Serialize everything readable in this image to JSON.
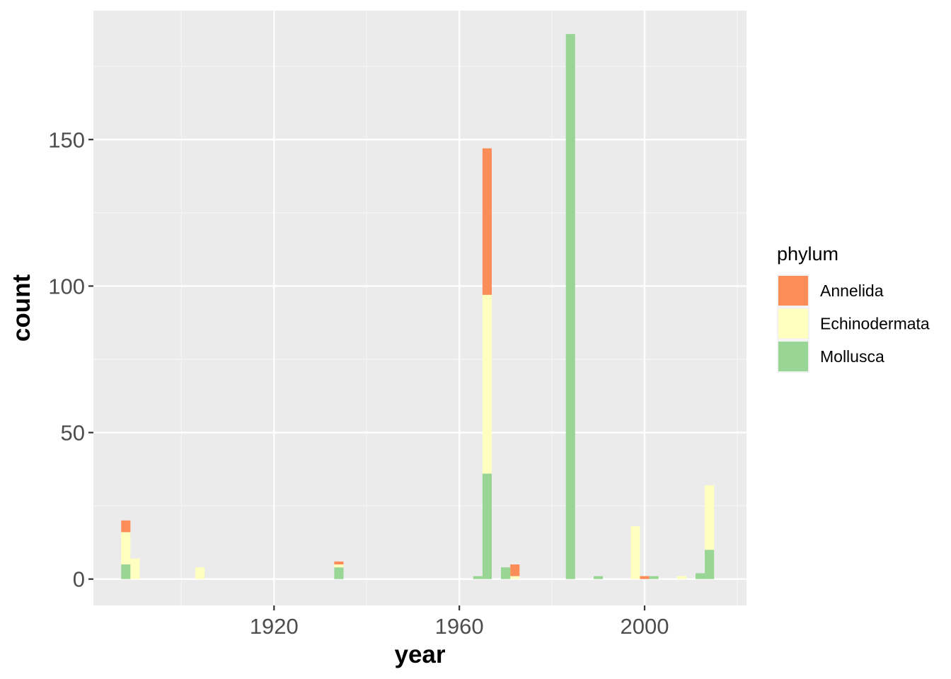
{
  "chart_data": {
    "type": "bar",
    "stacked": true,
    "bin_width": 2,
    "xlabel": "year",
    "ylabel": "count",
    "xlim": [
      1881,
      2022
    ],
    "ylim": [
      -9,
      194
    ],
    "x_ticks": [
      1920,
      1960,
      2000
    ],
    "x_tick_labels": [
      "1920",
      "1960",
      "2000"
    ],
    "y_ticks": [
      0,
      50,
      100,
      150
    ],
    "y_tick_labels": [
      "0",
      "50",
      "100",
      "150"
    ],
    "grid": true,
    "legend": {
      "title": "phylum",
      "position": "right"
    },
    "series": [
      {
        "name": "Mollusca",
        "color": "#99d594",
        "bins": [
          {
            "x": 1888,
            "value": 5
          },
          {
            "x": 1934,
            "value": 4
          },
          {
            "x": 1964,
            "value": 1
          },
          {
            "x": 1966,
            "value": 36
          },
          {
            "x": 1970,
            "value": 4
          },
          {
            "x": 1984,
            "value": 186
          },
          {
            "x": 1990,
            "value": 1
          },
          {
            "x": 2002,
            "value": 1
          },
          {
            "x": 2012,
            "value": 2
          },
          {
            "x": 2014,
            "value": 10
          }
        ]
      },
      {
        "name": "Echinodermata",
        "color": "#ffffbf",
        "bins": [
          {
            "x": 1888,
            "value": 11
          },
          {
            "x": 1890,
            "value": 7
          },
          {
            "x": 1904,
            "value": 4
          },
          {
            "x": 1934,
            "value": 1
          },
          {
            "x": 1966,
            "value": 61
          },
          {
            "x": 1972,
            "value": 1
          },
          {
            "x": 1998,
            "value": 18
          },
          {
            "x": 2008,
            "value": 1
          },
          {
            "x": 2014,
            "value": 22
          }
        ]
      },
      {
        "name": "Annelida",
        "color": "#fc8d59",
        "bins": [
          {
            "x": 1888,
            "value": 4
          },
          {
            "x": 1934,
            "value": 1
          },
          {
            "x": 1966,
            "value": 50
          },
          {
            "x": 1972,
            "value": 4
          },
          {
            "x": 2000,
            "value": 1
          }
        ]
      }
    ],
    "legend_order": [
      "Annelida",
      "Echinodermata",
      "Mollusca"
    ],
    "colors": {
      "panel_background": "#ebebeb",
      "grid_major": "#ffffff",
      "grid_minor": "#f5f5f5"
    }
  }
}
